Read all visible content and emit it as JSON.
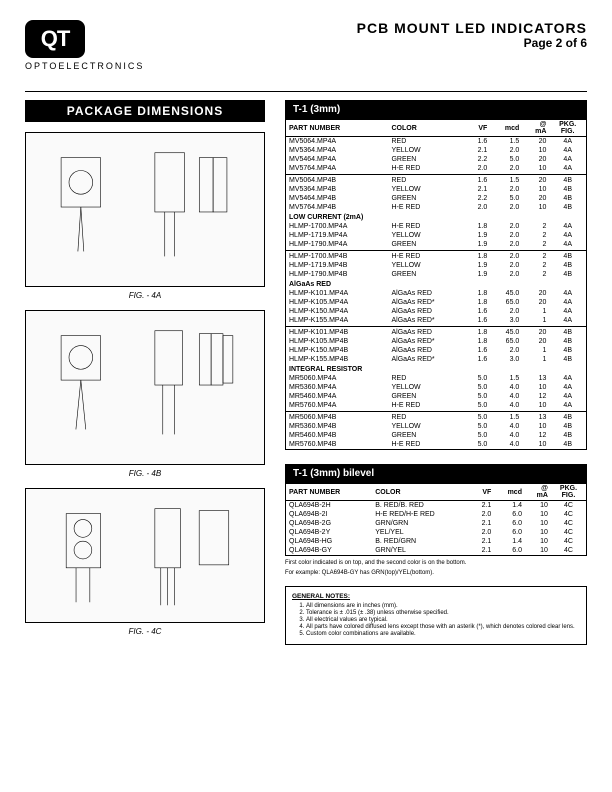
{
  "header": {
    "logo_text": "QT",
    "opto": "OPTOELECTRONICS",
    "title": "PCB MOUNT LED INDICATORS",
    "page": "Page 2 of 6"
  },
  "pkgdims": {
    "bar": "PACKAGE DIMENSIONS",
    "fig_4a": "FIG. - 4A",
    "fig_4b": "FIG. - 4B",
    "fig_4c": "FIG. - 4C"
  },
  "table1": {
    "title": "T-1 (3mm)",
    "headers": {
      "pn": "PART NUMBER",
      "color": "COLOR",
      "vf": "VF",
      "mcd": "mcd",
      "at": "@",
      "ma": "mA",
      "pkg": "PKG.",
      "fig": "FIG."
    },
    "rows": [
      {
        "pn": "MV5064.MP4A",
        "color": "RED",
        "vf": "1.6",
        "mcd": "1.5",
        "ma": "20",
        "fig": "4A"
      },
      {
        "pn": "MV5364.MP4A",
        "color": "YELLOW",
        "vf": "2.1",
        "mcd": "2.0",
        "ma": "10",
        "fig": "4A"
      },
      {
        "pn": "MV5464.MP4A",
        "color": "GREEN",
        "vf": "2.2",
        "mcd": "5.0",
        "ma": "20",
        "fig": "4A"
      },
      {
        "pn": "MV5764.MP4A",
        "color": "H-E RED",
        "vf": "2.0",
        "mcd": "2.0",
        "ma": "10",
        "fig": "4A",
        "hr": true
      },
      {
        "pn": "MV5064.MP4B",
        "color": "RED",
        "vf": "1.6",
        "mcd": "1.5",
        "ma": "20",
        "fig": "4B"
      },
      {
        "pn": "MV5364.MP4B",
        "color": "YELLOW",
        "vf": "2.1",
        "mcd": "2.0",
        "ma": "10",
        "fig": "4B"
      },
      {
        "pn": "MV5464.MP4B",
        "color": "GREEN",
        "vf": "2.2",
        "mcd": "5.0",
        "ma": "20",
        "fig": "4B"
      },
      {
        "pn": "MV5764.MP4B",
        "color": "H-E RED",
        "vf": "2.0",
        "mcd": "2.0",
        "ma": "10",
        "fig": "4B"
      }
    ],
    "sections": [
      {
        "label": "LOW CURRENT (2mA)",
        "rows": [
          {
            "pn": "HLMP-1700.MP4A",
            "color": "H-E RED",
            "vf": "1.8",
            "mcd": "2.0",
            "ma": "2",
            "fig": "4A"
          },
          {
            "pn": "HLMP-1719.MP4A",
            "color": "YELLOW",
            "vf": "1.9",
            "mcd": "2.0",
            "ma": "2",
            "fig": "4A"
          },
          {
            "pn": "HLMP-1790.MP4A",
            "color": "GREEN",
            "vf": "1.9",
            "mcd": "2.0",
            "ma": "2",
            "fig": "4A",
            "hr": true
          },
          {
            "pn": "HLMP-1700.MP4B",
            "color": "H-E RED",
            "vf": "1.8",
            "mcd": "2.0",
            "ma": "2",
            "fig": "4B"
          },
          {
            "pn": "HLMP-1719.MP4B",
            "color": "YELLOW",
            "vf": "1.9",
            "mcd": "2.0",
            "ma": "2",
            "fig": "4B"
          },
          {
            "pn": "HLMP-1790.MP4B",
            "color": "GREEN",
            "vf": "1.9",
            "mcd": "2.0",
            "ma": "2",
            "fig": "4B"
          }
        ]
      },
      {
        "label": "AlGaAs RED",
        "rows": [
          {
            "pn": "HLMP-K101.MP4A",
            "color": "AlGaAs RED",
            "vf": "1.8",
            "mcd": "45.0",
            "ma": "20",
            "fig": "4A"
          },
          {
            "pn": "HLMP-K105.MP4A",
            "color": "AlGaAs RED*",
            "vf": "1.8",
            "mcd": "65.0",
            "ma": "20",
            "fig": "4A"
          },
          {
            "pn": "HLMP-K150.MP4A",
            "color": "AlGaAs RED",
            "vf": "1.6",
            "mcd": "2.0",
            "ma": "1",
            "fig": "4A"
          },
          {
            "pn": "HLMP-K155.MP4A",
            "color": "AlGaAs RED*",
            "vf": "1.6",
            "mcd": "3.0",
            "ma": "1",
            "fig": "4A",
            "hr": true
          },
          {
            "pn": "HLMP-K101.MP4B",
            "color": "AlGaAs RED",
            "vf": "1.8",
            "mcd": "45.0",
            "ma": "20",
            "fig": "4B"
          },
          {
            "pn": "HLMP-K105.MP4B",
            "color": "AlGaAs RED*",
            "vf": "1.8",
            "mcd": "65.0",
            "ma": "20",
            "fig": "4B"
          },
          {
            "pn": "HLMP-K150.MP4B",
            "color": "AlGaAs RED",
            "vf": "1.6",
            "mcd": "2.0",
            "ma": "1",
            "fig": "4B"
          },
          {
            "pn": "HLMP-K155.MP4B",
            "color": "AlGaAs RED*",
            "vf": "1.6",
            "mcd": "3.0",
            "ma": "1",
            "fig": "4B"
          }
        ]
      },
      {
        "label": "INTEGRAL RESISTOR",
        "rows": [
          {
            "pn": "MR5060.MP4A",
            "color": "RED",
            "vf": "5.0",
            "mcd": "1.5",
            "ma": "13",
            "fig": "4A"
          },
          {
            "pn": "MR5360.MP4A",
            "color": "YELLOW",
            "vf": "5.0",
            "mcd": "4.0",
            "ma": "10",
            "fig": "4A"
          },
          {
            "pn": "MR5460.MP4A",
            "color": "GREEN",
            "vf": "5.0",
            "mcd": "4.0",
            "ma": "12",
            "fig": "4A"
          },
          {
            "pn": "MR5760.MP4A",
            "color": "H-E RED",
            "vf": "5.0",
            "mcd": "4.0",
            "ma": "10",
            "fig": "4A",
            "hr": true
          },
          {
            "pn": "MR5060.MP4B",
            "color": "RED",
            "vf": "5.0",
            "mcd": "1.5",
            "ma": "13",
            "fig": "4B"
          },
          {
            "pn": "MR5360.MP4B",
            "color": "YELLOW",
            "vf": "5.0",
            "mcd": "4.0",
            "ma": "10",
            "fig": "4B"
          },
          {
            "pn": "MR5460.MP4B",
            "color": "GREEN",
            "vf": "5.0",
            "mcd": "4.0",
            "ma": "12",
            "fig": "4B"
          },
          {
            "pn": "MR5760.MP4B",
            "color": "H-E RED",
            "vf": "5.0",
            "mcd": "4.0",
            "ma": "10",
            "fig": "4B"
          }
        ]
      }
    ]
  },
  "table2": {
    "title": "T-1 (3mm) bilevel",
    "headers": {
      "pn": "PART NUMBER",
      "color": "COLOR",
      "vf": "VF",
      "mcd": "mcd",
      "at": "@",
      "ma": "mA",
      "pkg": "PKG.",
      "fig": "FIG."
    },
    "rows": [
      {
        "pn": "QLA694B-2H",
        "color": "B. RED/B. RED",
        "vf": "2.1",
        "mcd": "1.4",
        "ma": "10",
        "fig": "4C"
      },
      {
        "pn": "QLA694B-2I",
        "color": "H-E RED/H-E RED",
        "vf": "2.0",
        "mcd": "6.0",
        "ma": "10",
        "fig": "4C"
      },
      {
        "pn": "QLA694B-2G",
        "color": "GRN/GRN",
        "vf": "2.1",
        "mcd": "6.0",
        "ma": "10",
        "fig": "4C"
      },
      {
        "pn": "QLA694B-2Y",
        "color": "YEL/YEL",
        "vf": "2.0",
        "mcd": "6.0",
        "ma": "10",
        "fig": "4C"
      },
      {
        "pn": "QLA694B-HG",
        "color": "B. RED/GRN",
        "vf": "2.1",
        "mcd": "1.4",
        "ma": "10",
        "fig": "4C"
      },
      {
        "pn": "QLA694B-GY",
        "color": "GRN/YEL",
        "vf": "2.1",
        "mcd": "6.0",
        "ma": "10",
        "fig": "4C"
      }
    ],
    "note1": "First color indicated is on top, and the second color is on the bottom.",
    "note2": "For example: QLA694B-GY has GRN(top)/YEL(bottom)."
  },
  "notes": {
    "title": "GENERAL NOTES:",
    "items": [
      "All dimensions are in inches (mm).",
      "Tolerance is ± .015 (± .38) unless otherwise specified.",
      "All electrical values are typical.",
      "All parts have colored diffused lens except those with an asterik (*), which denotes colored clear lens.",
      "Custom color combinations are available."
    ]
  }
}
